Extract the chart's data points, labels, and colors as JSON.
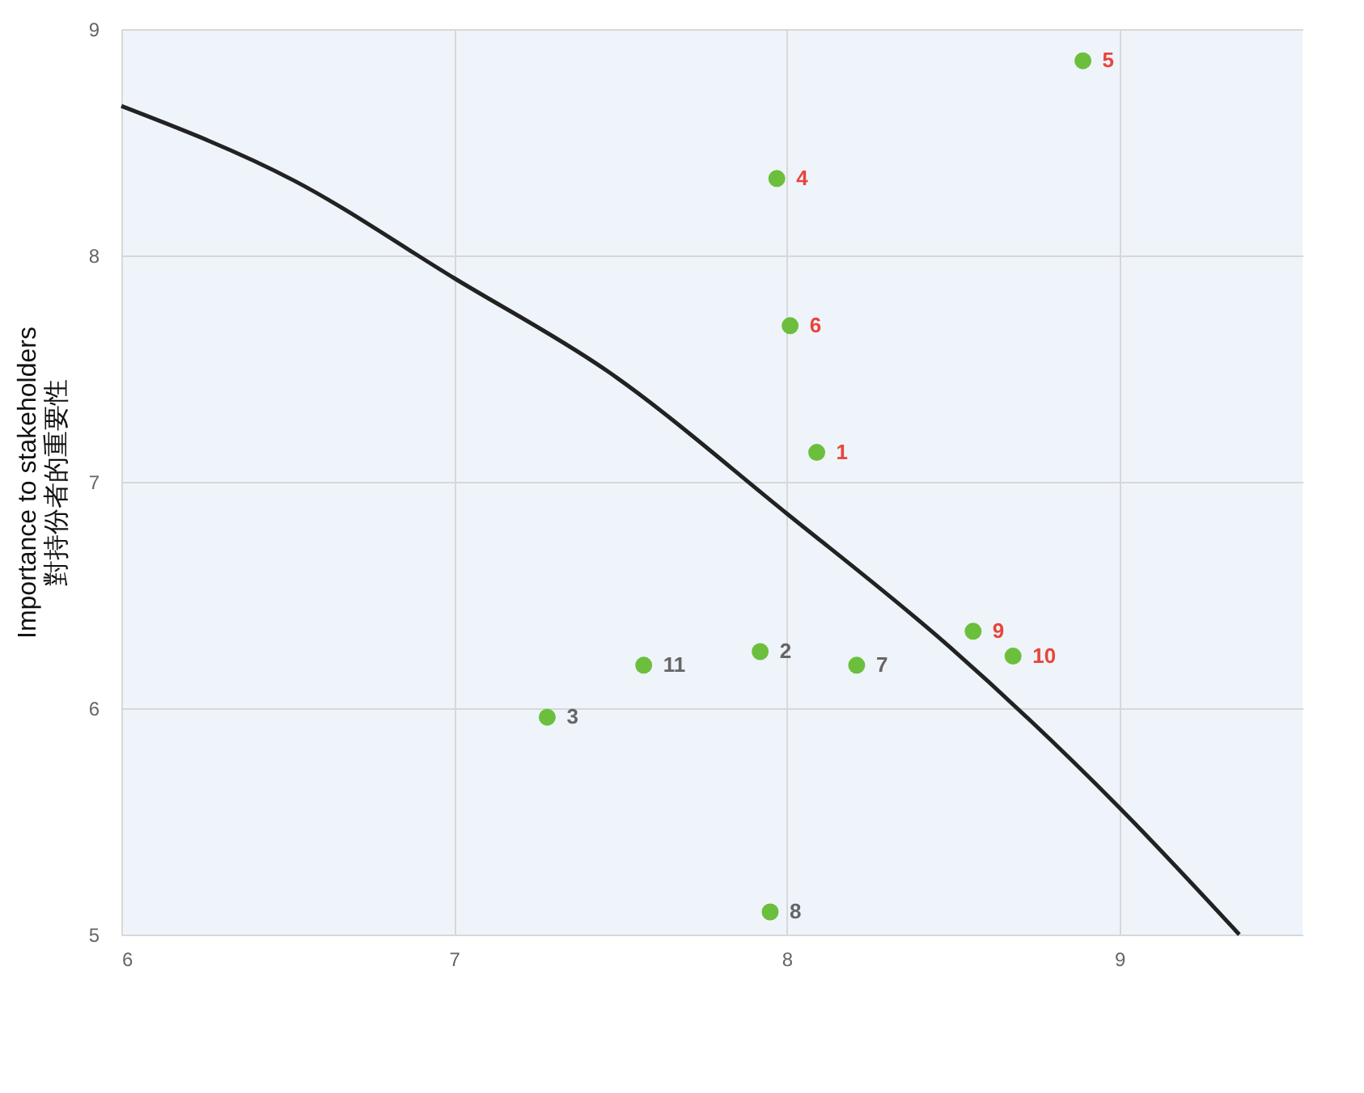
{
  "chart_data": {
    "type": "scatter",
    "ylabel": "Importance to stakeholders\n對持份者的重要性",
    "xlim": [
      6,
      9.55
    ],
    "ylim": [
      5,
      9
    ],
    "xticks": [
      6,
      7,
      8,
      9
    ],
    "yticks": [
      5,
      6,
      7,
      8,
      9
    ],
    "grid": true,
    "marker": "circle",
    "series": [
      {
        "color": "#6cbf3c",
        "x": [
          8.09,
          7.97,
          8.89,
          8.01,
          8.56,
          8.68
        ],
        "values": [
          7.13,
          8.34,
          8.86,
          7.69,
          6.34,
          6.23
        ]
      },
      {
        "color": "#6cbf3c",
        "x": [
          7.92,
          7.28,
          8.21,
          7.95,
          7.57
        ],
        "values": [
          6.25,
          5.96,
          6.19,
          5.1,
          6.19
        ]
      },
      {
        "type": "line",
        "color": "#222222",
        "marker": "none",
        "x": [
          6,
          6.52,
          7,
          7.46,
          8,
          8.49,
          9,
          9.36
        ],
        "values": [
          8.66,
          8.33,
          7.9,
          7.49,
          6.86,
          6.27,
          5.56,
          5.0
        ]
      }
    ],
    "annotations": [
      {
        "text": "1",
        "x": 8.09,
        "y": 7.13
      },
      {
        "text": "4",
        "x": 7.97,
        "y": 8.34
      },
      {
        "text": "5",
        "x": 8.89,
        "y": 8.86
      },
      {
        "text": "6",
        "x": 8.01,
        "y": 7.69
      },
      {
        "text": "9",
        "x": 8.56,
        "y": 6.34
      },
      {
        "text": "10",
        "x": 8.68,
        "y": 6.23
      },
      {
        "text": "2",
        "x": 7.92,
        "y": 6.25
      },
      {
        "text": "3",
        "x": 7.28,
        "y": 5.96
      },
      {
        "text": "7",
        "x": 8.21,
        "y": 6.19
      },
      {
        "text": "8",
        "x": 7.95,
        "y": 5.1
      },
      {
        "text": "11",
        "x": 7.57,
        "y": 6.19
      }
    ]
  }
}
